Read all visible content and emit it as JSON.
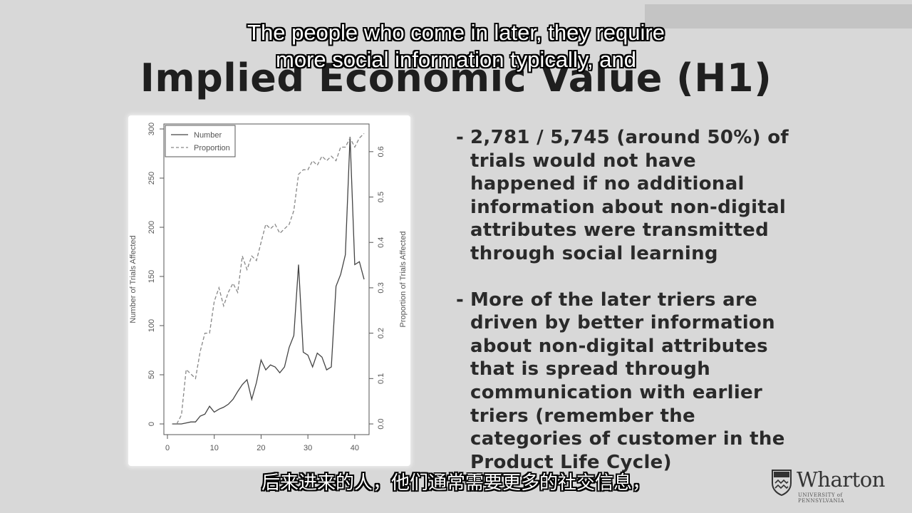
{
  "slide": {
    "title": "Implied Economic Value (H1)",
    "subtitle_en_line1": "The people who come in later, they require",
    "subtitle_en_line2": "more social information typically, and",
    "subtitle_zh": "后来进来的人，他们通常需要更多的社交信息，",
    "bullets": [
      "2,781 / 5,745 (around 50%) of trials would not have happened if no additional information about non-digital attributes were transmitted through social learning",
      "More of the later triers are driven by better information about non-digital attributes that is spread through communication with earlier triers (remember the categories of customer in the Product Life Cycle)"
    ],
    "bullet_dash": "-",
    "logo": {
      "name": "Wharton",
      "tagline": "UNIVERSITY of PENNSYLVANIA"
    }
  },
  "chart_data": {
    "type": "line",
    "xlabel": "",
    "ylabel": "Number of Trials Affected",
    "y2label": "Proportion of Trials Affected",
    "xlim": [
      0,
      42
    ],
    "ylim": [
      0,
      300
    ],
    "y2lim": [
      0,
      0.65
    ],
    "xticks": [
      0,
      10,
      20,
      30,
      40
    ],
    "yticks": [
      0,
      50,
      100,
      150,
      200,
      250,
      300
    ],
    "y2ticks": [
      0.0,
      0.1,
      0.2,
      0.3,
      0.4,
      0.5,
      0.6
    ],
    "legend_position": "top-left",
    "grid": false,
    "series": [
      {
        "name": "Number",
        "axis": "left",
        "style": "solid",
        "x": [
          1,
          2,
          3,
          4,
          5,
          6,
          7,
          8,
          9,
          10,
          11,
          12,
          13,
          14,
          15,
          16,
          17,
          18,
          19,
          20,
          21,
          22,
          23,
          24,
          25,
          26,
          27,
          28,
          29,
          30,
          31,
          32,
          33,
          34,
          35,
          36,
          37,
          38,
          39,
          40,
          41,
          42
        ],
        "values": [
          0,
          0,
          0,
          1,
          2,
          2,
          8,
          10,
          18,
          12,
          15,
          17,
          20,
          25,
          33,
          40,
          45,
          25,
          42,
          65,
          55,
          60,
          58,
          52,
          58,
          78,
          90,
          162,
          73,
          70,
          58,
          72,
          68,
          55,
          58,
          140,
          152,
          172,
          292,
          162,
          165,
          147
        ]
      },
      {
        "name": "Proportion",
        "axis": "right",
        "style": "dashed",
        "x": [
          2,
          3,
          4,
          5,
          6,
          7,
          8,
          9,
          10,
          11,
          12,
          13,
          14,
          15,
          16,
          17,
          18,
          19,
          20,
          21,
          22,
          23,
          24,
          25,
          26,
          27,
          28,
          29,
          30,
          31,
          32,
          33,
          34,
          35,
          36,
          37,
          38,
          39,
          40,
          41,
          42
        ],
        "values": [
          0.0,
          0.02,
          0.12,
          0.11,
          0.1,
          0.16,
          0.2,
          0.2,
          0.27,
          0.3,
          0.26,
          0.29,
          0.31,
          0.29,
          0.37,
          0.34,
          0.37,
          0.36,
          0.4,
          0.44,
          0.43,
          0.44,
          0.42,
          0.43,
          0.44,
          0.47,
          0.55,
          0.56,
          0.56,
          0.58,
          0.57,
          0.59,
          0.58,
          0.59,
          0.58,
          0.61,
          0.61,
          0.63,
          0.61,
          0.63,
          0.64
        ]
      }
    ]
  }
}
